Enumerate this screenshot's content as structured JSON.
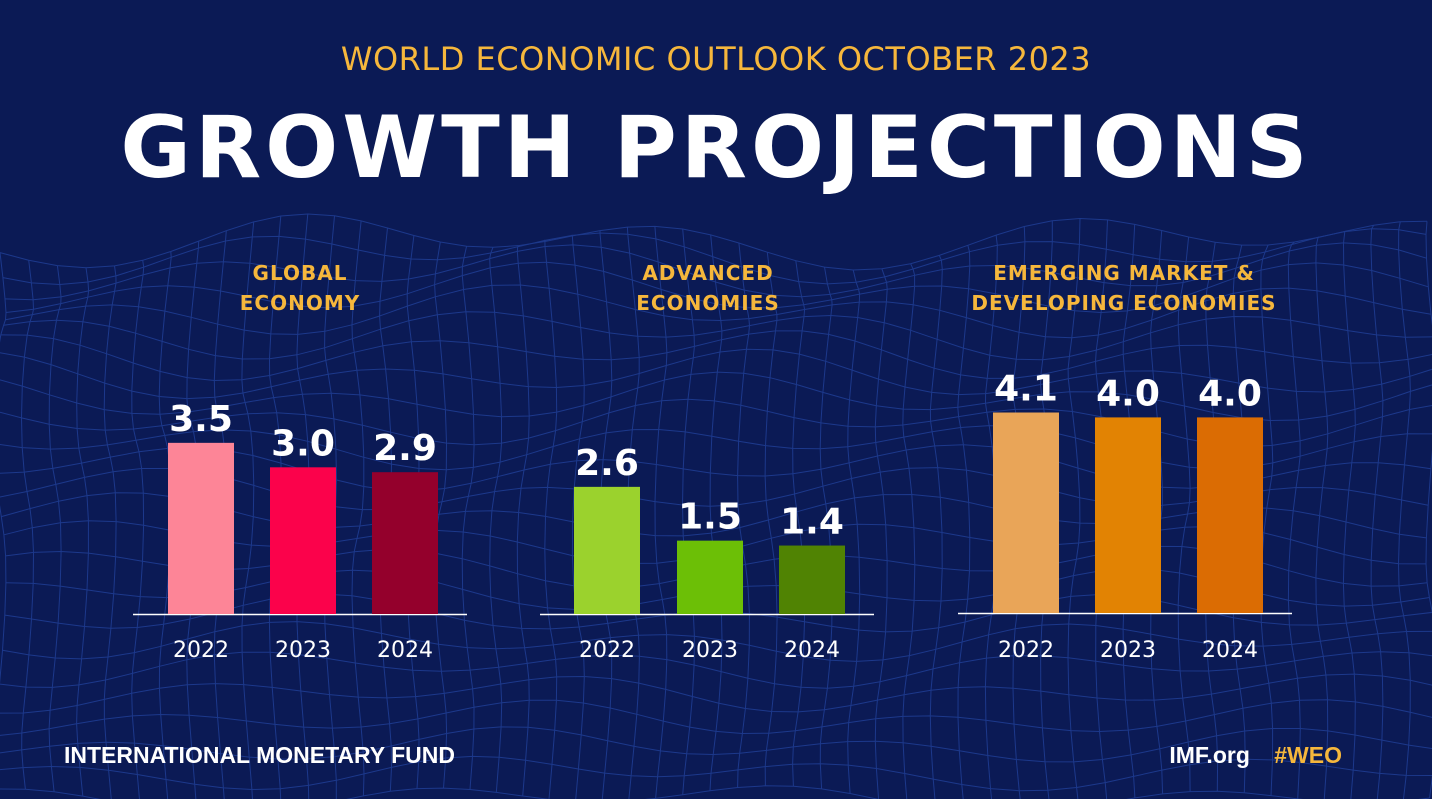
{
  "header": {
    "subtitle": "WORLD ECONOMIC OUTLOOK OCTOBER 2023",
    "title": "GROWTH PROJECTIONS"
  },
  "footer": {
    "org": "INTERNATIONAL MONETARY FUND",
    "site": "IMF.org",
    "hashtag": "#WEO"
  },
  "colors": {
    "background": "#0b1a55",
    "accent": "#f6b73c"
  },
  "chart_data": [
    {
      "type": "bar",
      "title_lines": [
        "GLOBAL",
        "ECONOMY"
      ],
      "categories": [
        "2022",
        "2023",
        "2024"
      ],
      "values": [
        3.5,
        3.0,
        2.9
      ],
      "value_labels": [
        "3.5",
        "3.0",
        "2.9"
      ],
      "colors": [
        "#fd8597",
        "#fb024b",
        "#94002c"
      ],
      "ylim": [
        0,
        4.2
      ]
    },
    {
      "type": "bar",
      "title_lines": [
        "ADVANCED",
        "ECONOMIES"
      ],
      "categories": [
        "2022",
        "2023",
        "2024"
      ],
      "values": [
        2.6,
        1.5,
        1.4
      ],
      "value_labels": [
        "2.6",
        "1.5",
        "1.4"
      ],
      "colors": [
        "#9bd22d",
        "#6cbf06",
        "#508303"
      ],
      "ylim": [
        0,
        4.2
      ]
    },
    {
      "type": "bar",
      "title_lines": [
        "EMERGING MARKET &",
        "DEVELOPING ECONOMIES"
      ],
      "categories": [
        "2022",
        "2023",
        "2024"
      ],
      "values": [
        4.1,
        4.0,
        4.0
      ],
      "value_labels": [
        "4.1",
        "4.0",
        "4.0"
      ],
      "colors": [
        "#e9a558",
        "#e28303",
        "#db6c03"
      ],
      "ylim": [
        0,
        4.2
      ]
    }
  ]
}
